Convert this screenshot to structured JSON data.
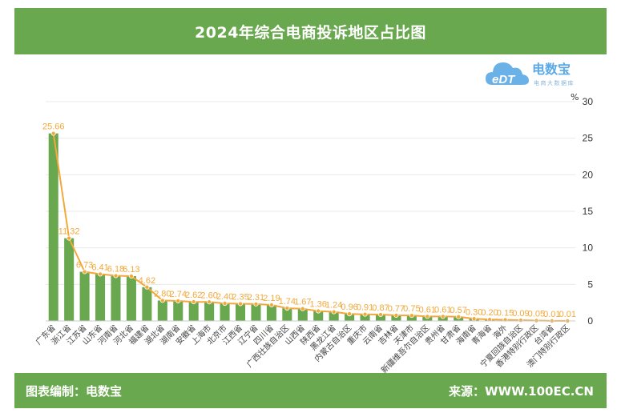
{
  "header": {
    "title": "2024年综合电商投诉地区占比图"
  },
  "logo": {
    "brand": "电数宝",
    "tagline": "电商大数据库",
    "mark": "eDT"
  },
  "footer": {
    "left_text": "图表编制：电数宝",
    "right_text": "来源：WWW.100EC.CN"
  },
  "colors": {
    "header_bg": "#6aa84f",
    "bar": "#6aa84f",
    "line": "#f2a93b",
    "label": "#f2a93b",
    "logo": "#5aa9e6"
  },
  "chart_data": {
    "type": "bar",
    "title": "2024年综合电商投诉地区占比图",
    "xlabel": "",
    "ylabel": "%",
    "ylim": [
      0,
      30
    ],
    "yticks": [
      0,
      5,
      10,
      15,
      20,
      25,
      30
    ],
    "y_axis_side": "right",
    "categories": [
      "广东省",
      "浙江省",
      "江苏省",
      "山东省",
      "河南省",
      "河北省",
      "福建省",
      "湖北省",
      "湖南省",
      "安徽省",
      "上海市",
      "北京市",
      "江西省",
      "辽宁省",
      "四川省",
      "广西壮族自治区",
      "山西省",
      "陕西省",
      "黑龙江省",
      "内蒙古自治区",
      "重庆市",
      "云南省",
      "吉林省",
      "天津市",
      "新疆维吾尔自治区",
      "贵州省",
      "甘肃省",
      "海南省",
      "青海省",
      "海外",
      "宁夏回族自治区",
      "香港特别行政区",
      "台湾省",
      "澳门特别行政区"
    ],
    "values": [
      25.66,
      11.32,
      6.73,
      6.41,
      6.18,
      6.13,
      4.62,
      2.8,
      2.74,
      2.62,
      2.6,
      2.4,
      2.35,
      2.31,
      2.19,
      1.74,
      1.67,
      1.36,
      1.24,
      0.96,
      0.91,
      0.87,
      0.77,
      0.75,
      0.61,
      0.61,
      0.57,
      0.3,
      0.2,
      0.15,
      0.09,
      0.05,
      0.01,
      0.01
    ],
    "value_labels": [
      "25.66",
      "11.32",
      "6.73",
      "6.41",
      "6.18",
      "6.13",
      "4.62",
      "2.80",
      "2.74",
      "2.62",
      "2.60",
      "2.40",
      "2.35",
      "2.31",
      "2.19",
      "1.74",
      "1.67",
      "1.36",
      "1.24",
      "0.96",
      "0.91",
      "0.87",
      "0.77",
      "0.75",
      "0.61",
      "0.61",
      "0.57",
      "0.30",
      "0.20",
      "0.15",
      "0.09",
      "0.05",
      "0.01",
      "0.01"
    ],
    "overlay": "line-with-markers",
    "grid": true,
    "legend": "none"
  }
}
